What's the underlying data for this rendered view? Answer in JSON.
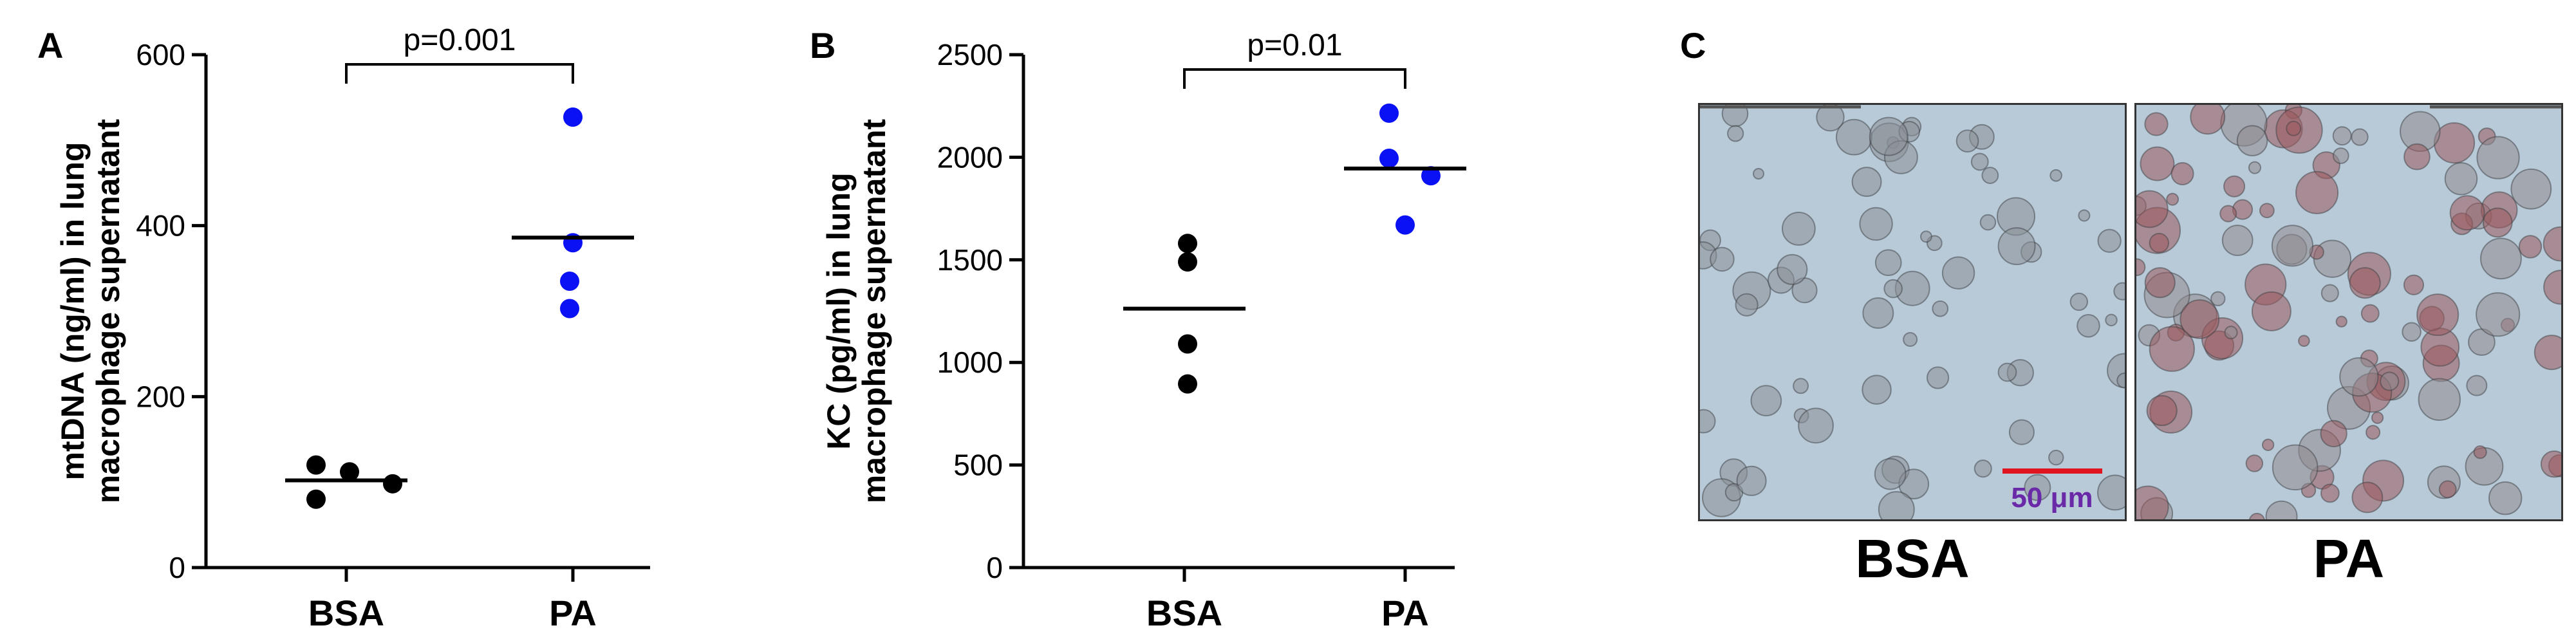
{
  "panels": {
    "a": "A",
    "b": "B",
    "c": "C"
  },
  "chart_data": [
    {
      "type": "scatter",
      "categories": [
        "BSA",
        "PA"
      ],
      "ylabel_line1": "mtDNA (ng/ml) in lung",
      "ylabel_line2": "macrophage supernatant",
      "ylim": [
        0,
        600
      ],
      "yticks": [
        0,
        200,
        400,
        600
      ],
      "series": [
        {
          "category": "BSA",
          "color": "#000000",
          "values": [
            120,
            80,
            112,
            98
          ],
          "mean": 102
        },
        {
          "category": "PA",
          "color": "#0a12f5",
          "values": [
            527,
            380,
            335,
            303
          ],
          "mean": 386
        }
      ],
      "significance": "p=0.001"
    },
    {
      "type": "scatter",
      "categories": [
        "BSA",
        "PA"
      ],
      "ylabel_line1": "KC (pg/ml) in lung",
      "ylabel_line2": "macrophage supernatant",
      "ylim": [
        0,
        2500
      ],
      "yticks": [
        0,
        500,
        1000,
        1500,
        2000,
        2500
      ],
      "series": [
        {
          "category": "BSA",
          "color": "#000000",
          "values": [
            1580,
            1490,
            1090,
            895
          ],
          "mean": 1262
        },
        {
          "category": "PA",
          "color": "#0a12f5",
          "values": [
            2215,
            1995,
            1910,
            1670
          ],
          "mean": 1945
        }
      ],
      "significance": "p=0.01"
    }
  ],
  "micrographs": {
    "left_label": "BSA",
    "right_label": "PA",
    "scale_bar": "50 μm",
    "scale_bar_color": "#e0141e",
    "scale_text_color": "#6a2aa8",
    "background_color": "#b8cad8"
  }
}
